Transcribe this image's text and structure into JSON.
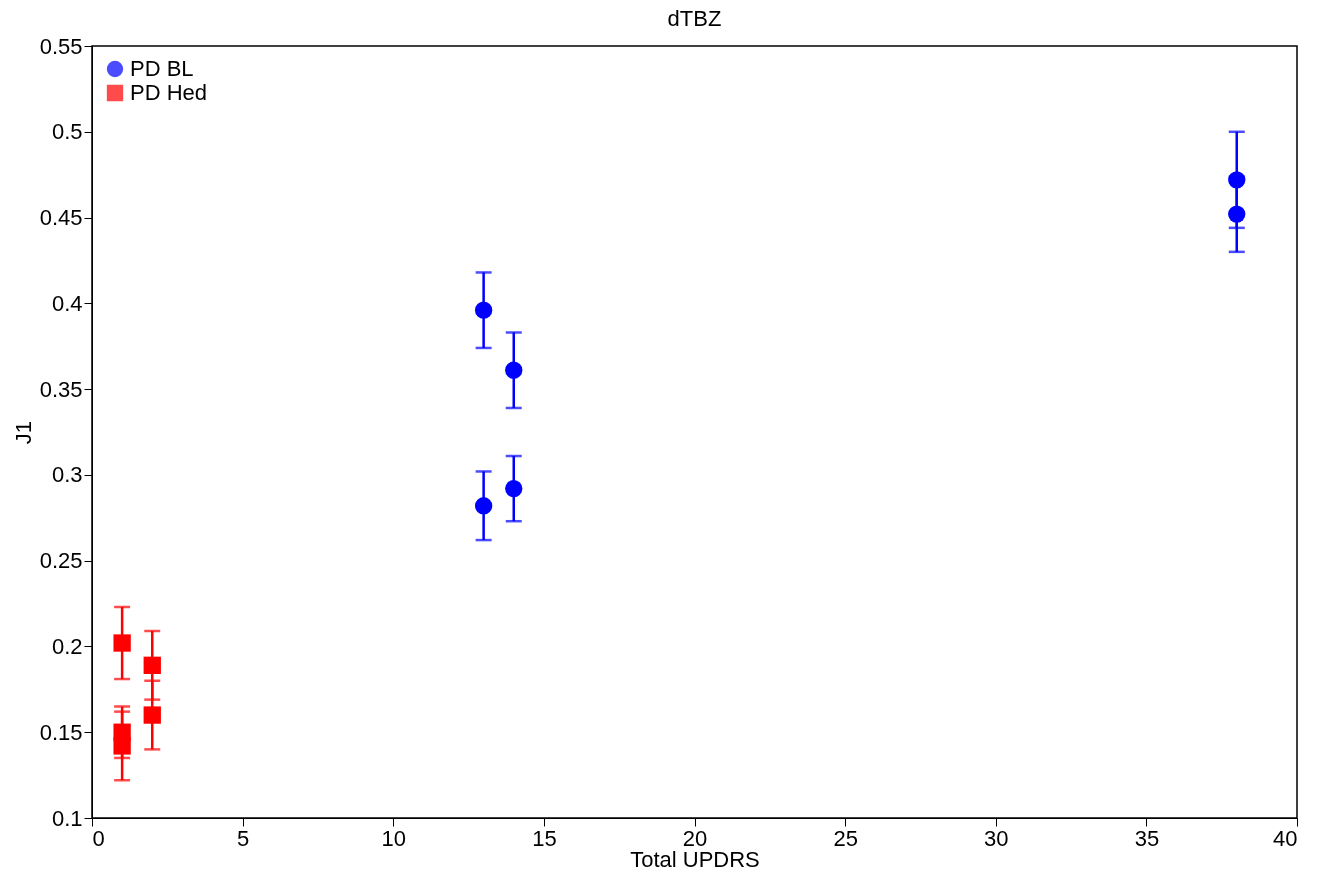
{
  "chart_data": {
    "type": "scatter",
    "title": "dTBZ",
    "xlabel": "Total UPDRS",
    "ylabel": "J1",
    "xlim": [
      0,
      40
    ],
    "xticks": [
      0,
      5,
      10,
      15,
      20,
      25,
      30,
      35,
      40
    ],
    "ylim": [
      0.1,
      0.55
    ],
    "yticks": [
      0.1,
      0.15,
      0.2,
      0.25,
      0.3,
      0.35,
      0.4,
      0.45,
      0.5,
      0.55
    ],
    "grid": false,
    "legend": "top left",
    "series": [
      {
        "name": "PD BL",
        "color": "#0000ff",
        "marker": "circle",
        "x": [
          13,
          14,
          13,
          14,
          38,
          38
        ],
        "values": [
          0.396,
          0.361,
          0.282,
          0.292,
          0.472,
          0.452
        ],
        "errors": [
          0.022,
          0.022,
          0.02,
          0.019,
          0.028,
          0.022
        ]
      },
      {
        "name": "PD Hed",
        "color": "#ff0000",
        "marker": "square",
        "x": [
          1,
          1,
          1,
          2,
          2
        ],
        "values": [
          0.202,
          0.15,
          0.142,
          0.189,
          0.16
        ],
        "errors": [
          0.021,
          0.015,
          0.02,
          0.02,
          0.02
        ]
      }
    ]
  }
}
